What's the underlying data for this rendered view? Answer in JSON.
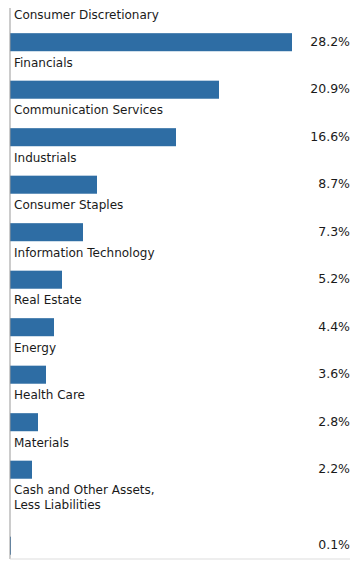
{
  "chart_data": {
    "type": "bar",
    "orientation": "horizontal",
    "categories": [
      "Consumer Discretionary",
      "Financials",
      "Communication Services",
      "Industrials",
      "Consumer Staples",
      "Information Technology",
      "Real Estate",
      "Energy",
      "Health Care",
      "Materials",
      "Cash and Other Assets,\nLess Liabilities"
    ],
    "values": [
      28.2,
      20.9,
      16.6,
      8.7,
      7.3,
      5.2,
      4.4,
      3.6,
      2.8,
      2.2,
      0.1
    ],
    "value_labels": [
      "28.2%",
      "20.9%",
      "16.6%",
      "8.7%",
      "7.3%",
      "5.2%",
      "4.4%",
      "3.6%",
      "2.8%",
      "2.2%",
      "0.1%"
    ],
    "data_labels": true,
    "color": "#2E6DA4",
    "xlim": [
      0,
      34
    ],
    "tick_labels": "y"
  }
}
